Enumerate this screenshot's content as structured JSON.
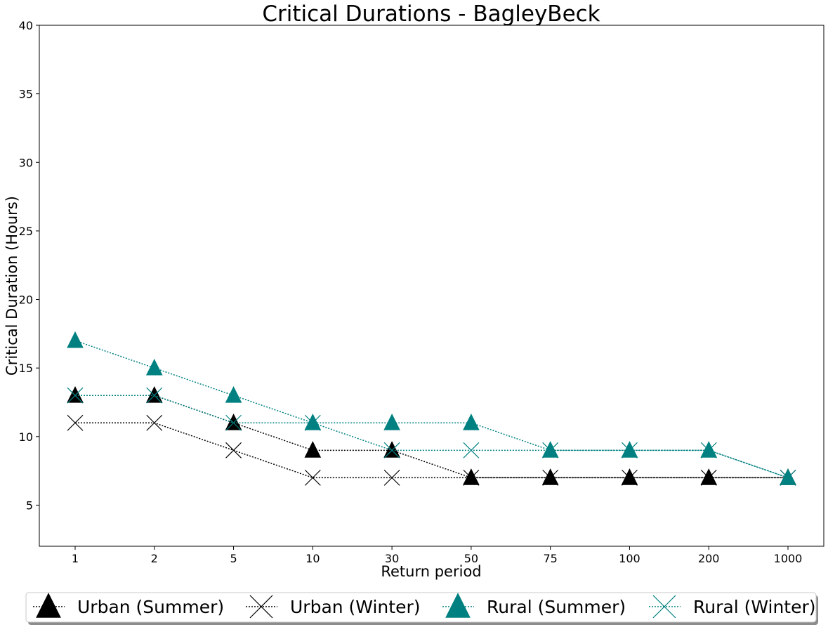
{
  "chart_data": {
    "type": "line",
    "title": "Critical Durations - BagleyBeck",
    "xlabel": "Return period",
    "ylabel": "Critical Duration (Hours)",
    "categories": [
      "1",
      "2",
      "5",
      "10",
      "30",
      "50",
      "75",
      "100",
      "200",
      "1000"
    ],
    "ylim": [
      2,
      40
    ],
    "yticks": [
      5,
      10,
      15,
      20,
      25,
      30,
      35,
      40
    ],
    "grid": false,
    "legend_position": "bottom",
    "series": [
      {
        "name": "Urban (Summer)",
        "marker": "triangle",
        "color": "#000000",
        "values": [
          13,
          13,
          11,
          9,
          9,
          7,
          7,
          7,
          7,
          7
        ]
      },
      {
        "name": "Urban (Winter)",
        "marker": "x",
        "color": "#000000",
        "values": [
          11,
          11,
          9,
          7,
          7,
          7,
          7,
          7,
          7,
          7
        ]
      },
      {
        "name": "Rural (Summer)",
        "marker": "triangle",
        "color": "#008080",
        "values": [
          17,
          15,
          13,
          11,
          11,
          11,
          9,
          9,
          9,
          7
        ]
      },
      {
        "name": "Rural (Winter)",
        "marker": "x",
        "color": "#008080",
        "values": [
          13,
          13,
          11,
          11,
          9,
          9,
          9,
          9,
          9,
          7
        ]
      }
    ]
  }
}
